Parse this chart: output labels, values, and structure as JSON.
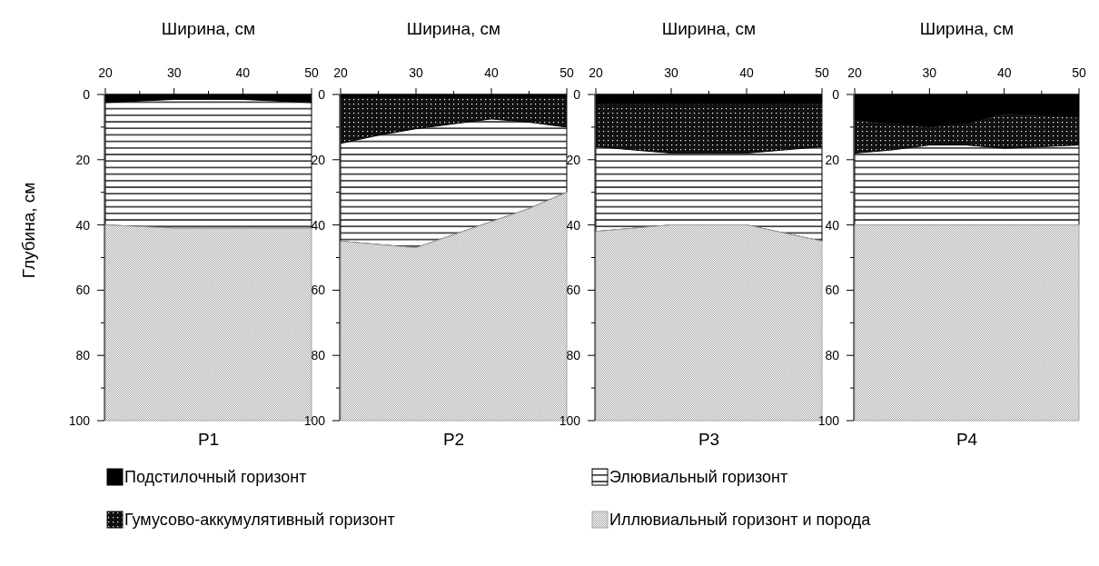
{
  "chart_data": [
    {
      "type": "area",
      "stacked": true,
      "title": "P1",
      "xlabel": "Ширина, см",
      "ylabel": "Глубина, см",
      "x": [
        20,
        25,
        30,
        35,
        40,
        45,
        50
      ],
      "xlim": [
        20,
        50
      ],
      "ylim": [
        100,
        0
      ],
      "xticks": [
        20,
        {
          "value": 25,
          "label": null
        },
        30,
        {
          "value": 35,
          "label": null
        },
        40,
        {
          "value": 45,
          "label": null
        },
        50
      ],
      "yticks": [
        0,
        {
          "value": 10,
          "label": null
        },
        20,
        {
          "value": 30,
          "label": null
        },
        40,
        {
          "value": 50,
          "label": null
        },
        60,
        {
          "value": 70,
          "label": null
        },
        80,
        {
          "value": 90,
          "label": null
        },
        100
      ],
      "series": [
        {
          "color": "#000000",
          "values": [
            2.5,
            2,
            1.5,
            1.5,
            1.5,
            2,
            2.5
          ]
        },
        {
          "color": "#111111",
          "values": [
            null,
            null,
            null,
            null,
            null,
            null,
            null
          ]
        },
        {
          "color": "#000000",
          "values": [
            37.5,
            38.5,
            39.5,
            39.5,
            39.5,
            39,
            38.5
          ]
        },
        {
          "color": "#a6a6a6",
          "values": [
            60,
            59.5,
            59,
            59,
            59,
            59,
            59
          ]
        }
      ]
    },
    {
      "type": "area",
      "stacked": true,
      "title": "P2",
      "xlabel": "Ширина, см",
      "x": [
        20,
        25,
        30,
        35,
        40,
        45,
        50
      ],
      "xlim": [
        20,
        50
      ],
      "ylim": [
        100,
        0
      ],
      "xticks": [
        20,
        {
          "value": 25,
          "label": null
        },
        30,
        {
          "value": 35,
          "label": null
        },
        40,
        {
          "value": 45,
          "label": null
        },
        50
      ],
      "yticks": [
        0,
        {
          "value": 10,
          "label": null
        },
        20,
        {
          "value": 30,
          "label": null
        },
        40,
        {
          "value": 50,
          "label": null
        },
        60,
        {
          "value": 70,
          "label": null
        },
        80,
        {
          "value": 90,
          "label": null
        },
        100
      ],
      "series": [
        {
          "name": "Подстилочный горизонт",
          "color": "#000000",
          "values": [
            1,
            1,
            1,
            1,
            1,
            1,
            1
          ]
        },
        {
          "name": "Гумусово-аккумулятивный горизонт",
          "color": "#111111",
          "values": [
            14,
            11.5,
            9.5,
            8,
            6.5,
            7.5,
            9
          ]
        },
        {
          "name": "Элювиальный горизонт",
          "color": "#000000",
          "values": [
            30,
            33.5,
            36.5,
            34,
            31.5,
            26.5,
            20
          ]
        },
        {
          "name": "Иллювиальный горизонт и порода",
          "color": "#a6a6a6",
          "values": [
            55,
            54,
            53,
            57,
            61,
            65,
            70
          ]
        }
      ],
      "legend": "bottom"
    },
    {
      "type": "area",
      "stacked": true,
      "title": "P3",
      "xlabel": "Ширина, см",
      "x": [
        20,
        25,
        30,
        35,
        40,
        45,
        50
      ],
      "xlim": [
        20,
        50
      ],
      "ylim": [
        100,
        0
      ],
      "xticks": [
        20,
        {
          "value": 25,
          "label": null
        },
        30,
        {
          "value": 35,
          "label": null
        },
        40,
        {
          "value": 45,
          "label": null
        },
        50
      ],
      "yticks": [
        0,
        {
          "value": 10,
          "label": null
        },
        20,
        {
          "value": 30,
          "label": null
        },
        40,
        {
          "value": 50,
          "label": null
        },
        60,
        {
          "value": 70,
          "label": null
        },
        80,
        {
          "value": 90,
          "label": null
        },
        100
      ],
      "series": [
        {
          "color": "#000000",
          "values": [
            3,
            3,
            3,
            3,
            3,
            3,
            3
          ]
        },
        {
          "color": "#111111",
          "values": [
            13,
            14,
            15,
            15,
            15,
            14,
            13
          ]
        },
        {
          "color": "#000000",
          "values": [
            26,
            24,
            22,
            22,
            22,
            25.5,
            29
          ]
        },
        {
          "color": "#a6a6a6",
          "values": [
            58,
            59,
            60,
            60,
            60,
            57.5,
            55
          ]
        }
      ]
    },
    {
      "type": "area",
      "stacked": true,
      "title": "P4",
      "xlabel": "Ширина, см",
      "x": [
        20,
        25,
        30,
        35,
        40,
        45,
        50
      ],
      "xlim": [
        20,
        50
      ],
      "ylim": [
        100,
        0
      ],
      "xticks": [
        20,
        {
          "value": 25,
          "label": null
        },
        30,
        {
          "value": 35,
          "label": null
        },
        40,
        {
          "value": 45,
          "label": null
        },
        50
      ],
      "yticks": [
        0,
        {
          "value": 10,
          "label": null
        },
        20,
        {
          "value": 30,
          "label": null
        },
        40,
        {
          "value": 50,
          "label": null
        },
        60,
        {
          "value": 70,
          "label": null
        },
        80,
        {
          "value": 90,
          "label": null
        },
        100
      ],
      "series": [
        {
          "color": "#000000",
          "values": [
            8,
            9,
            10,
            9,
            6,
            6.5,
            7
          ]
        },
        {
          "color": "#111111",
          "values": [
            10,
            8,
            5.5,
            6.5,
            10.5,
            9.5,
            8.5
          ]
        },
        {
          "color": "#000000",
          "values": [
            22,
            23,
            24.5,
            24.5,
            23.5,
            24,
            24.5
          ]
        },
        {
          "color": "#a6a6a6",
          "values": [
            60,
            60,
            60,
            60,
            60,
            60,
            60
          ]
        }
      ]
    }
  ]
}
